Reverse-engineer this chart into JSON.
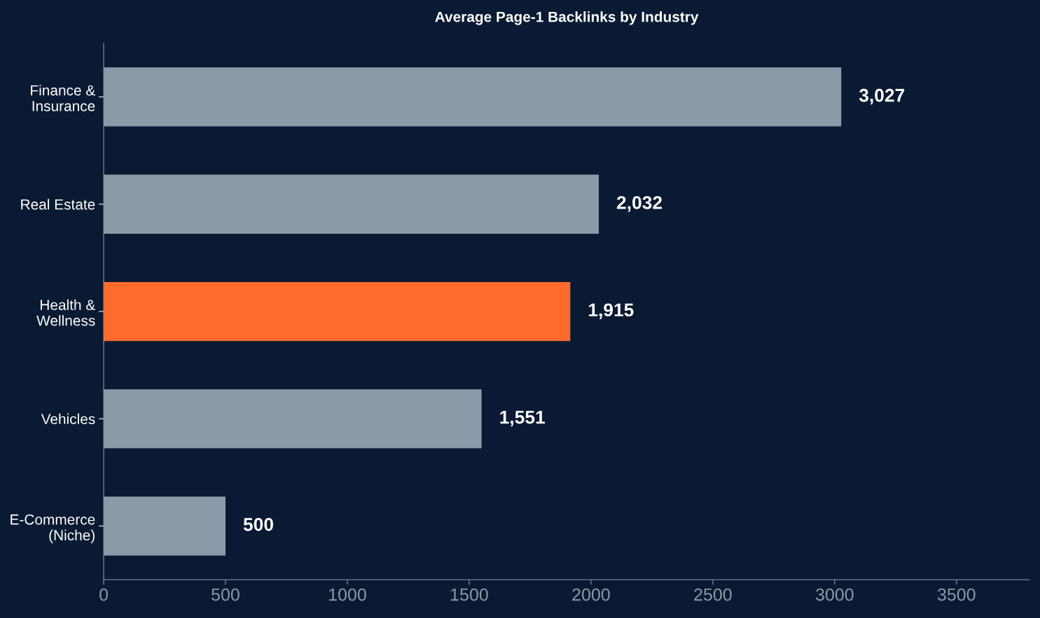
{
  "chart_data": {
    "type": "bar",
    "orientation": "horizontal",
    "title": "Average Page-1 Backlinks by Industry",
    "categories": [
      "Finance &\nInsurance",
      "Real Estate",
      "Health &\nWellness",
      "Vehicles",
      "E-Commerce\n(Niche)"
    ],
    "values": [
      3027,
      2032,
      1915,
      1551,
      500
    ],
    "colors": [
      "#8a9aa9",
      "#8a9aa9",
      "#ff6b2c",
      "#8a9aa9",
      "#8a9aa9"
    ],
    "value_labels": [
      "3,027",
      "2,032",
      "1,915",
      "1,551",
      "500"
    ],
    "xlim": [
      0,
      3800
    ],
    "xticks": [
      0,
      500,
      1000,
      1500,
      2000,
      2500,
      3000,
      3500
    ],
    "grid": false,
    "legend": false
  }
}
